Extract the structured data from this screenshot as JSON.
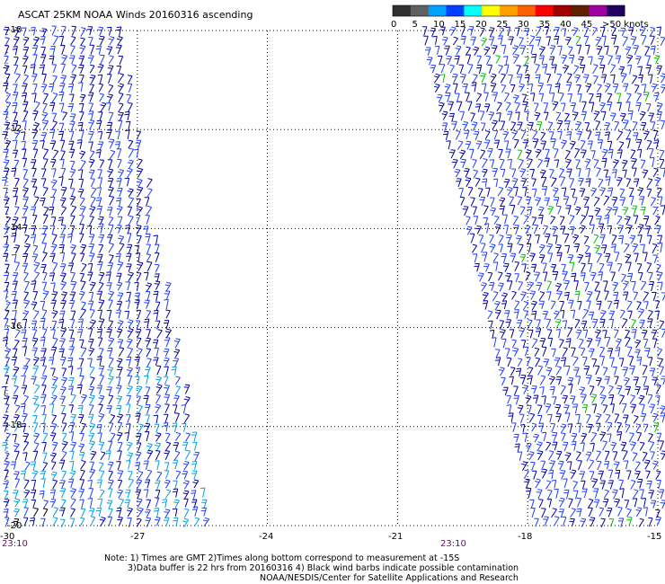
{
  "title": "ASCAT 25KM NOAA Winds 20160316 ascending",
  "legend": {
    "labels": [
      "0",
      "5",
      "10",
      "15",
      "20",
      "25",
      "30",
      "35",
      "40",
      "45",
      ">50 knots"
    ],
    "colors": [
      "#303030",
      "#606060",
      "#00a0ff",
      "#0040ff",
      "#00ffff",
      "#ffff00",
      "#ffa000",
      "#ff6000",
      "#ff0000",
      "#a00000",
      "#602000",
      "#a000a0",
      "#200060"
    ]
  },
  "lat_labels": [
    "-10",
    "-12",
    "-14",
    "-16",
    "-18",
    "-20"
  ],
  "lon_labels": [
    "-30",
    "-27",
    "-24",
    "-21",
    "-18",
    "-15"
  ],
  "times": [
    "23:10",
    "23:10"
  ],
  "notes": {
    "line1": "Note: 1) Times are GMT 2)Times along bottom correspond to measurement at -15S",
    "line2": "3)Data buffer is 22 hrs from 20160316 4) Black wind barbs indicate possible contamination",
    "line3": "NOAA/NESDIS/Center for Satellite Applications and Research"
  },
  "colors": {
    "barb_dark": "#0000a0",
    "barb_blue": "#1e3cff",
    "barb_light": "#00a0e0",
    "barb_green": "#00c000",
    "barb_black": "#000000",
    "time_label": "#800080"
  },
  "map": {
    "lat_range": [
      -20,
      -10
    ],
    "lon_range": [
      -30,
      -15
    ],
    "swaths": [
      {
        "name": "west",
        "lon_west": -30,
        "lon_east_at_north": -27.4,
        "lon_east_at_south": -25.3
      },
      {
        "name": "east",
        "lon_west_at_north": -20.4,
        "lon_west_at_south": -17.8,
        "lon_east": -15
      }
    ]
  }
}
